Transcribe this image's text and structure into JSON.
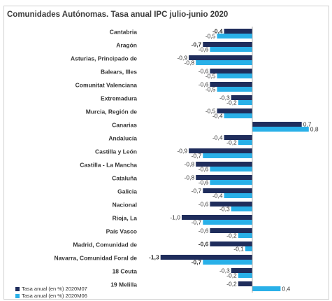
{
  "chart_data": {
    "type": "bar",
    "orientation": "horizontal",
    "title": "Comunidades Autónomas. Tasa anual IPC julio-junio 2020",
    "categories": [
      "Cantabria",
      "Aragón",
      "Asturias, Principado de",
      "Balears, Illes",
      "Comunitat Valenciana",
      "Extremadura",
      "Murcia, Región de",
      "Canarias",
      "Andalucía",
      "Castilla y León",
      "Castilla - La Mancha",
      "Cataluña",
      "Galicia",
      "Nacional",
      "Rioja, La",
      "País Vasco",
      "Madrid, Comunidad de",
      "Navarra, Comunidad Foral de",
      "18 Ceuta",
      "19 Melilla"
    ],
    "series": [
      {
        "name": "Tasa anual (en %) 2020M07",
        "values": [
          -0.4,
          -0.7,
          -0.9,
          -0.6,
          -0.6,
          -0.3,
          -0.5,
          0.7,
          -0.4,
          -0.9,
          -0.8,
          -0.8,
          -0.7,
          -0.6,
          -1.0,
          -0.6,
          -0.6,
          -1.3,
          -0.3,
          -0.2
        ],
        "labels": [
          "-0,4",
          "-0,7",
          "-0,9",
          "-0,6",
          "-0,6",
          "-0,3",
          "-0,5",
          "0,7",
          "-0,4",
          "-0,9",
          "-0,8",
          "-0,8",
          "-0,7",
          "-0,6",
          "-1,0",
          "-0,6",
          "-0,6",
          "-1,3",
          "-0,3",
          "-0,2"
        ]
      },
      {
        "name": "Tasa anual (en %) 2020M06",
        "values": [
          -0.5,
          -0.6,
          -0.8,
          -0.5,
          -0.5,
          -0.2,
          -0.4,
          0.8,
          -0.2,
          -0.7,
          -0.6,
          -0.6,
          -0.4,
          -0.3,
          -0.7,
          -0.2,
          -0.1,
          -0.7,
          -0.2,
          0.4
        ],
        "labels": [
          "-0,5",
          "-0,6",
          "-0,8",
          "-0,5",
          "-0,5",
          "-0,2",
          "-0,4",
          "0,8",
          "-0,2",
          "-0,7",
          "-0,6",
          "-0,6",
          "-0,4",
          "-0,3",
          "-0,7",
          "-0,2",
          "-0,1",
          "-0,7",
          "-0,2",
          "0,4"
        ]
      }
    ],
    "bold_labels": [
      [
        0,
        0
      ],
      [
        1,
        0
      ],
      [
        16,
        0
      ],
      [
        17,
        0
      ],
      [
        17,
        1
      ]
    ],
    "colors": {
      "series1": "#1f2d5c",
      "series2": "#29b0e8"
    },
    "xlim": [
      -1.4,
      0.9
    ],
    "legend_position": "bottom-left",
    "grid": false
  }
}
